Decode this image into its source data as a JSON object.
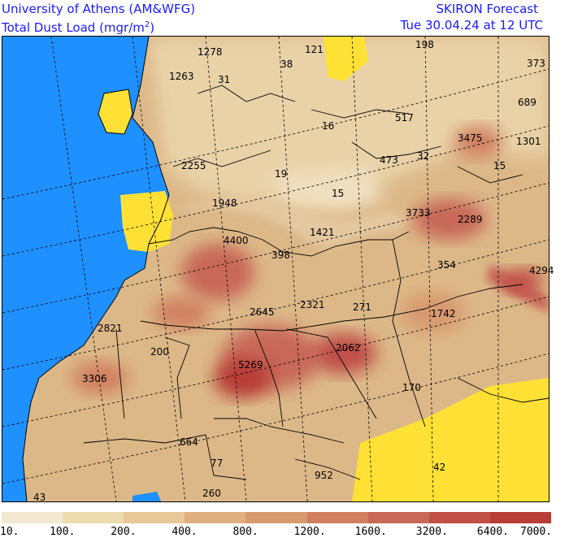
{
  "header": {
    "institution": "University of Athens (AM&WFG)",
    "field_prefix": "Total Dust Load (mgr/m",
    "field_exp": "2",
    "field_suffix": ")",
    "model": "SKIRON Forecast",
    "valid_time": "Tue 30.04.24 at 12 UTC"
  },
  "colors": {
    "sea": "#1e90ff",
    "no_dust": "#ffe135",
    "border": "#000000",
    "grid": "#000000"
  },
  "legend": {
    "labels": [
      "10.",
      "100.",
      "200.",
      "400.",
      "800.",
      "1200.",
      "1600.",
      "3200.",
      "6400.",
      "7000."
    ],
    "colors": [
      "#f3e9d2",
      "#ecdcb0",
      "#e8c898",
      "#deb080",
      "#d89a70",
      "#d08060",
      "#c86858",
      "#c05048",
      "#b83c38"
    ]
  },
  "map_labels": [
    {
      "text": "1278"
    },
    {
      "text": "1263"
    },
    {
      "text": "31"
    },
    {
      "text": "38"
    },
    {
      "text": "121"
    },
    {
      "text": "198"
    },
    {
      "text": "373"
    },
    {
      "text": "689"
    },
    {
      "text": "16"
    },
    {
      "text": "517"
    },
    {
      "text": "3475"
    },
    {
      "text": "1301"
    },
    {
      "text": "2255"
    },
    {
      "text": "19"
    },
    {
      "text": "473"
    },
    {
      "text": "32"
    },
    {
      "text": "15"
    },
    {
      "text": "15"
    },
    {
      "text": "1948"
    },
    {
      "text": "3733"
    },
    {
      "text": "2289"
    },
    {
      "text": "4400"
    },
    {
      "text": "1421"
    },
    {
      "text": "398"
    },
    {
      "text": "354"
    },
    {
      "text": "4294"
    },
    {
      "text": "2645"
    },
    {
      "text": "2321"
    },
    {
      "text": "271"
    },
    {
      "text": "1742"
    },
    {
      "text": "2821"
    },
    {
      "text": "200"
    },
    {
      "text": "2062"
    },
    {
      "text": "5269"
    },
    {
      "text": "3306"
    },
    {
      "text": "170"
    },
    {
      "text": "664"
    },
    {
      "text": "77"
    },
    {
      "text": "952"
    },
    {
      "text": "42"
    },
    {
      "text": "260"
    },
    {
      "text": "43"
    }
  ]
}
